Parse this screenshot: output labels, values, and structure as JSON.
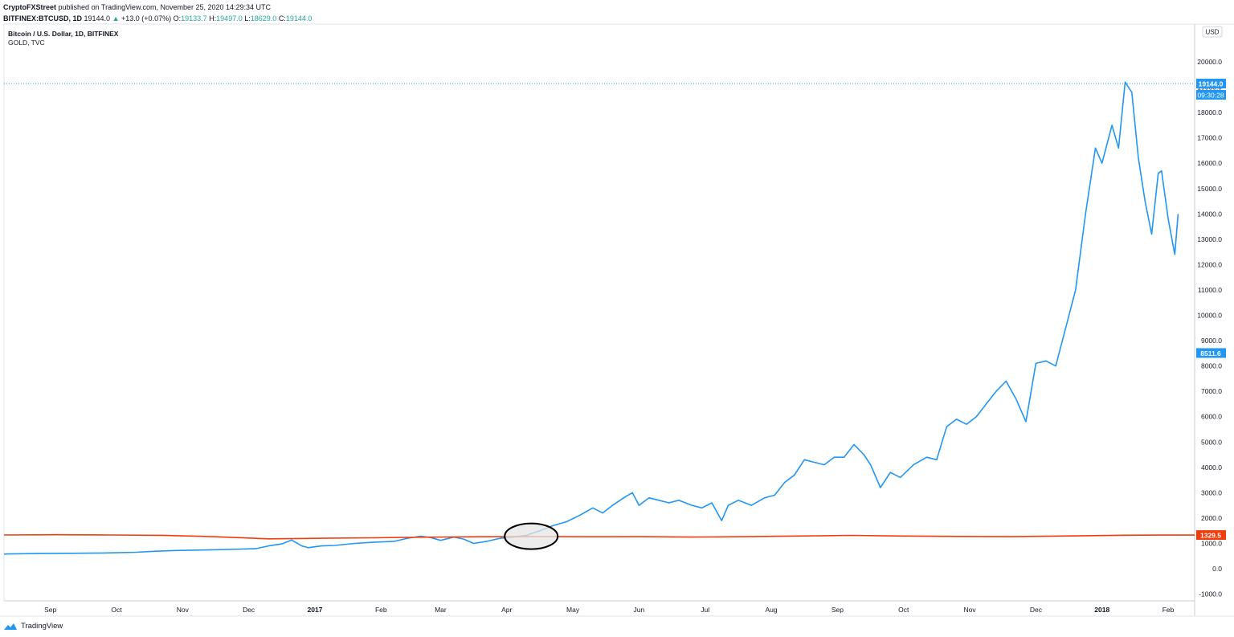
{
  "header": {
    "publisher": "CryptoFXStreet",
    "published_text": "published on TradingView.com, November 25, 2020 14:29:34 UTC",
    "symbol": "BITFINEX:BTCUSD, 1D",
    "last": "19144.0",
    "change": "+13.0 (+0.07%)",
    "open_label": "O:",
    "open": "19133.7",
    "high_label": "H:",
    "high": "19497.0",
    "low_label": "L:",
    "low": "18629.0",
    "close_label": "C:",
    "close": "19144.0"
  },
  "legend": {
    "title": "Bitcoin / U.S. Dollar, 1D, BITFINEX",
    "subtitle": "GOLD, TVC"
  },
  "currency_button": "USD",
  "footer": {
    "brand": "TradingView"
  },
  "colors": {
    "btc": "#2196f3",
    "gold": "#f23c0c",
    "ellipse_fill": "#e6e6e6",
    "axis_text": "#131722"
  },
  "chart_data": {
    "type": "line",
    "y_range": [
      -1000,
      21000
    ],
    "y_ticks": [
      "-1000.0",
      "0.0",
      "1000.0",
      "2000.0",
      "3000.0",
      "4000.0",
      "5000.0",
      "6000.0",
      "7000.0",
      "8000.0",
      "9000.0",
      "10000.0",
      "11000.0",
      "12000.0",
      "13000.0",
      "14000.0",
      "15000.0",
      "16000.0",
      "17000.0",
      "18000.0",
      "19000.0",
      "20000.0"
    ],
    "x_ticks": [
      {
        "label": "Sep",
        "t": 0.7
      },
      {
        "label": "Oct",
        "t": 1.7
      },
      {
        "label": "Nov",
        "t": 2.7
      },
      {
        "label": "Dec",
        "t": 3.7
      },
      {
        "label": "2017",
        "t": 4.7,
        "bold": true
      },
      {
        "label": "Feb",
        "t": 5.7
      },
      {
        "label": "Mar",
        "t": 6.6
      },
      {
        "label": "Apr",
        "t": 7.6
      },
      {
        "label": "May",
        "t": 8.6
      },
      {
        "label": "Jun",
        "t": 9.6
      },
      {
        "label": "Jul",
        "t": 10.6
      },
      {
        "label": "Aug",
        "t": 11.6
      },
      {
        "label": "Sep",
        "t": 12.6
      },
      {
        "label": "Oct",
        "t": 13.6
      },
      {
        "label": "Nov",
        "t": 14.6
      },
      {
        "label": "Dec",
        "t": 15.6
      },
      {
        "label": "2018",
        "t": 16.6,
        "bold": true
      },
      {
        "label": "Feb",
        "t": 17.6
      }
    ],
    "x_range": [
      0,
      18.0
    ],
    "series": [
      {
        "key": "btc",
        "points": [
          [
            0.0,
            580
          ],
          [
            0.5,
            600
          ],
          [
            1.0,
            610
          ],
          [
            1.5,
            620
          ],
          [
            2.0,
            650
          ],
          [
            2.3,
            690
          ],
          [
            2.6,
            720
          ],
          [
            3.0,
            740
          ],
          [
            3.4,
            760
          ],
          [
            3.8,
            790
          ],
          [
            4.0,
            900
          ],
          [
            4.2,
            980
          ],
          [
            4.35,
            1130
          ],
          [
            4.5,
            900
          ],
          [
            4.6,
            830
          ],
          [
            4.8,
            900
          ],
          [
            5.0,
            920
          ],
          [
            5.3,
            1000
          ],
          [
            5.6,
            1050
          ],
          [
            5.9,
            1080
          ],
          [
            6.1,
            1200
          ],
          [
            6.3,
            1280
          ],
          [
            6.45,
            1230
          ],
          [
            6.6,
            1120
          ],
          [
            6.8,
            1250
          ],
          [
            6.95,
            1170
          ],
          [
            7.1,
            1000
          ],
          [
            7.3,
            1080
          ],
          [
            7.5,
            1200
          ],
          [
            7.7,
            1250
          ],
          [
            7.9,
            1320
          ],
          [
            8.1,
            1500
          ],
          [
            8.3,
            1700
          ],
          [
            8.5,
            1850
          ],
          [
            8.7,
            2100
          ],
          [
            8.9,
            2400
          ],
          [
            9.05,
            2200
          ],
          [
            9.2,
            2500
          ],
          [
            9.4,
            2850
          ],
          [
            9.5,
            3000
          ],
          [
            9.6,
            2500
          ],
          [
            9.75,
            2800
          ],
          [
            9.9,
            2700
          ],
          [
            10.05,
            2600
          ],
          [
            10.2,
            2700
          ],
          [
            10.4,
            2500
          ],
          [
            10.55,
            2400
          ],
          [
            10.7,
            2600
          ],
          [
            10.85,
            1900
          ],
          [
            10.95,
            2500
          ],
          [
            11.1,
            2700
          ],
          [
            11.3,
            2500
          ],
          [
            11.5,
            2800
          ],
          [
            11.65,
            2900
          ],
          [
            11.8,
            3400
          ],
          [
            11.95,
            3700
          ],
          [
            12.1,
            4300
          ],
          [
            12.25,
            4200
          ],
          [
            12.4,
            4100
          ],
          [
            12.55,
            4400
          ],
          [
            12.7,
            4400
          ],
          [
            12.85,
            4900
          ],
          [
            13.0,
            4500
          ],
          [
            13.1,
            4100
          ],
          [
            13.25,
            3200
          ],
          [
            13.4,
            3800
          ],
          [
            13.55,
            3600
          ],
          [
            13.75,
            4100
          ],
          [
            13.95,
            4400
          ],
          [
            14.1,
            4300
          ],
          [
            14.25,
            5600
          ],
          [
            14.4,
            5900
          ],
          [
            14.55,
            5700
          ],
          [
            14.7,
            6000
          ],
          [
            14.85,
            6500
          ],
          [
            15.0,
            7000
          ],
          [
            15.15,
            7400
          ],
          [
            15.3,
            6700
          ],
          [
            15.45,
            5800
          ],
          [
            15.6,
            8100
          ],
          [
            15.75,
            8200
          ],
          [
            15.9,
            8000
          ],
          [
            16.05,
            9500
          ],
          [
            16.2,
            11000
          ],
          [
            16.35,
            14000
          ],
          [
            16.5,
            16600
          ],
          [
            16.6,
            16000
          ],
          [
            16.75,
            17500
          ],
          [
            16.85,
            16600
          ],
          [
            16.95,
            19200
          ],
          [
            17.05,
            18800
          ],
          [
            17.15,
            16200
          ],
          [
            17.25,
            14500
          ],
          [
            17.35,
            13200
          ],
          [
            17.45,
            15600
          ],
          [
            17.5,
            15700
          ],
          [
            17.6,
            13800
          ],
          [
            17.7,
            12400
          ],
          [
            17.75,
            14000
          ]
        ]
      },
      {
        "key": "gold",
        "points": [
          [
            0.0,
            1330
          ],
          [
            0.8,
            1340
          ],
          [
            1.6,
            1330
          ],
          [
            2.4,
            1320
          ],
          [
            3.2,
            1260
          ],
          [
            4.0,
            1180
          ],
          [
            4.8,
            1200
          ],
          [
            5.6,
            1220
          ],
          [
            6.4,
            1245
          ],
          [
            7.2,
            1260
          ],
          [
            8.0,
            1270
          ],
          [
            8.8,
            1260
          ],
          [
            9.6,
            1265
          ],
          [
            10.4,
            1250
          ],
          [
            11.2,
            1265
          ],
          [
            12.0,
            1290
          ],
          [
            12.8,
            1315
          ],
          [
            13.6,
            1290
          ],
          [
            14.4,
            1275
          ],
          [
            15.2,
            1265
          ],
          [
            16.0,
            1290
          ],
          [
            16.8,
            1320
          ],
          [
            17.5,
            1329.5
          ],
          [
            18.0,
            1329.5
          ]
        ]
      }
    ],
    "price_labels": [
      {
        "series": "btc",
        "value": 19144.0,
        "text": "19144.0",
        "dotted_line": true
      },
      {
        "series": "btc",
        "value": 8511.6,
        "text": "8511.6"
      },
      {
        "series": "gold",
        "value": 1329.5,
        "text": "1329.5"
      }
    ],
    "countdown": "09:30:28"
  }
}
